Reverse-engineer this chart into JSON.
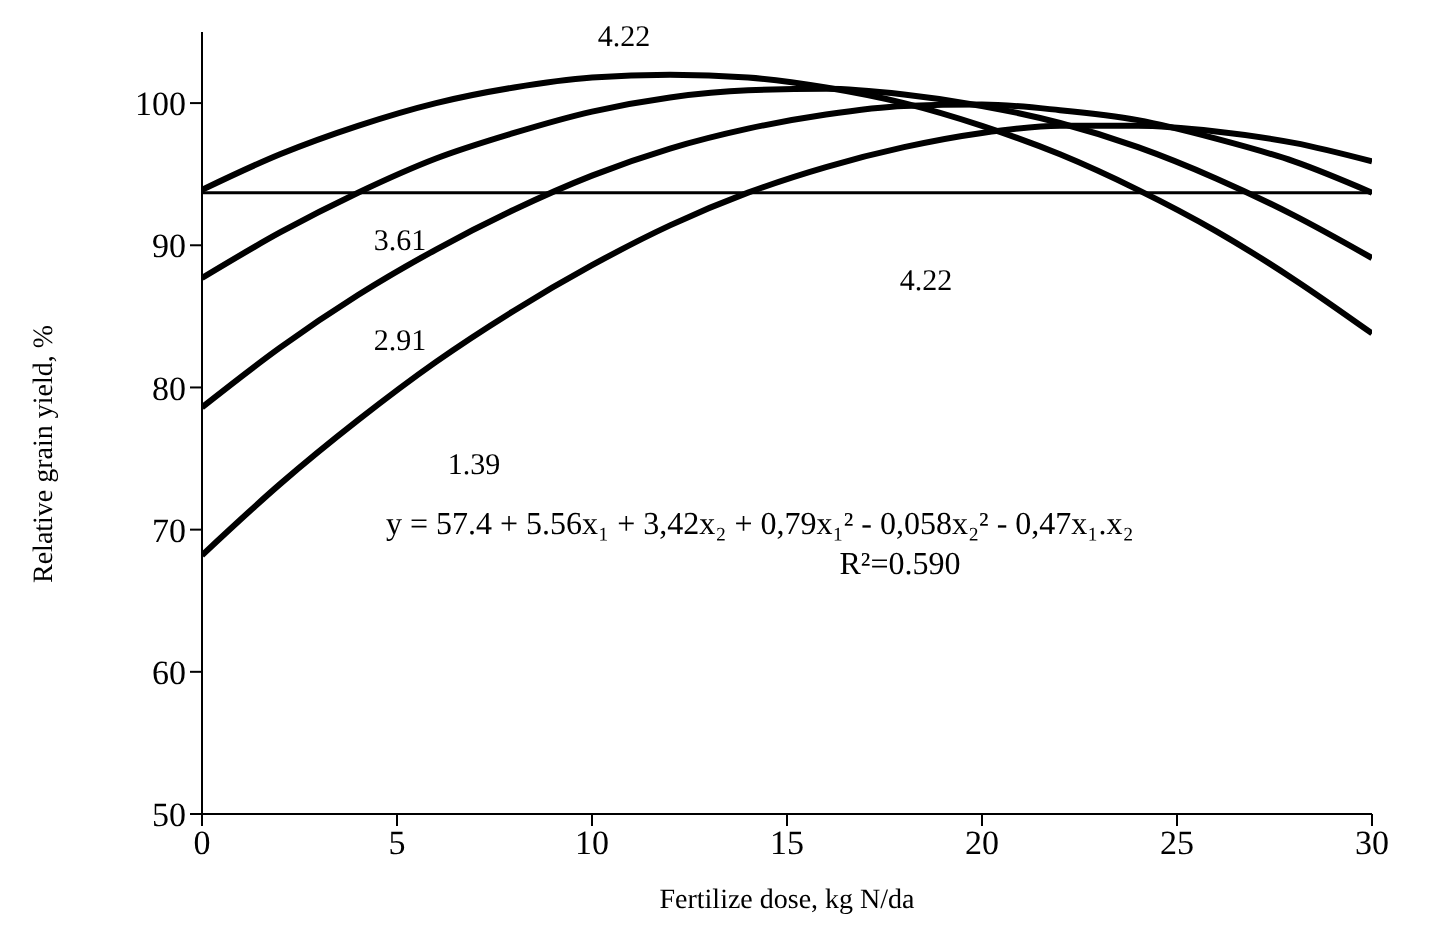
{
  "chart_data": {
    "type": "line",
    "xlabel": "Fertilize dose, kg N/da",
    "ylabel": "Relative grain yield, %",
    "x": [
      0,
      2,
      4,
      6,
      8,
      10,
      12,
      14,
      16,
      18,
      20,
      22,
      24,
      26,
      28,
      30
    ],
    "series": [
      {
        "color": "#000000",
        "values": [
          93.9,
          96.4,
          98.4,
          100.0,
          101.1,
          101.8,
          102.0,
          101.8,
          101.1,
          100.0,
          98.4,
          96.4,
          93.9,
          91.0,
          87.6,
          83.8
        ]
      },
      {
        "color": "#000000",
        "values": [
          87.7,
          90.9,
          93.7,
          96.1,
          97.9,
          99.4,
          100.4,
          100.9,
          101.0,
          100.6,
          99.8,
          98.6,
          96.9,
          94.7,
          92.1,
          89.1
        ]
      },
      {
        "color": "#000000",
        "values": [
          78.6,
          82.8,
          86.5,
          89.7,
          92.5,
          94.9,
          96.8,
          98.2,
          99.2,
          99.8,
          99.9,
          99.5,
          98.8,
          97.5,
          95.9,
          93.7
        ]
      },
      {
        "color": "#000000",
        "values": [
          68.2,
          73.2,
          77.7,
          81.8,
          85.4,
          88.6,
          91.4,
          93.7,
          95.5,
          96.9,
          97.9,
          98.4,
          98.4,
          98.0,
          97.2,
          95.9
        ]
      }
    ],
    "xlim": [
      0,
      30
    ],
    "xticks": [
      0,
      5,
      10,
      15,
      20,
      25,
      30
    ],
    "ylim": [
      50,
      105
    ],
    "yticks": [
      50,
      60,
      70,
      80,
      90,
      100
    ],
    "ref_lines": [
      {
        "axis": "y",
        "value": 93.7,
        "color": "#000000"
      }
    ],
    "annotations": [
      "4.22",
      "3.61",
      "2.91",
      "1.39",
      "4.22",
      "y = 57.4 + 5.56x₁ + 3,42x₂ + 0,79x₁² - 0,058x₂² - 0,47x₁.x₂",
      "R²=0.590"
    ],
    "grid": false,
    "legend": false,
    "marker": "none",
    "line_style": "solid"
  }
}
